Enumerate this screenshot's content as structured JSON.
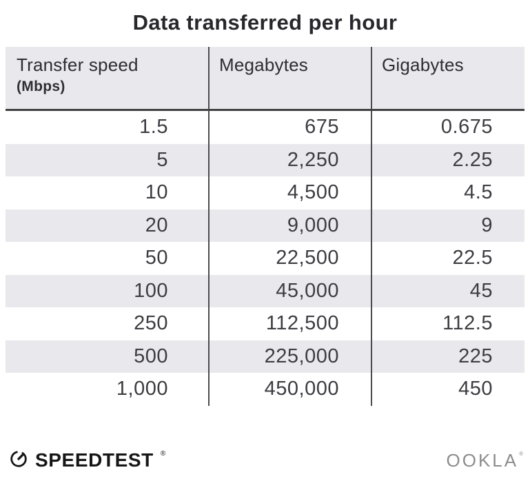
{
  "title": "Data transferred per hour",
  "table": {
    "columns": [
      {
        "label": "Transfer speed",
        "sublabel": "(Mbps)"
      },
      {
        "label": "Megabytes"
      },
      {
        "label": "Gigabytes"
      }
    ],
    "rows": [
      [
        "1.5",
        "675",
        "0.675"
      ],
      [
        "5",
        "2,250",
        "2.25"
      ],
      [
        "10",
        "4,500",
        "4.5"
      ],
      [
        "20",
        "9,000",
        "9"
      ],
      [
        "50",
        "22,500",
        "22.5"
      ],
      [
        "100",
        "45,000",
        "45"
      ],
      [
        "250",
        "112,500",
        "112.5"
      ],
      [
        "500",
        "225,000",
        "225"
      ],
      [
        "1,000",
        "450,000",
        "450"
      ]
    ]
  },
  "footer": {
    "speedtest_label": "SPEEDTEST",
    "speedtest_trademark": "®",
    "ookla_label": "OOKLA",
    "ookla_trademark": "®"
  },
  "colors": {
    "background": "#ffffff",
    "stripe": "#e9e9ed",
    "header_background": "#e9e9ed",
    "divider": "#4c4c4f",
    "header_underline": "#404043",
    "title_text": "#28282c",
    "number_text": "#3c3c41",
    "speedtest_black": "#161616",
    "ookla_gray": "#8c8c8c"
  },
  "chart_data": {
    "type": "table",
    "title": "Data transferred per hour",
    "columns": [
      "Transfer speed (Mbps)",
      "Megabytes",
      "Gigabytes"
    ],
    "rows": [
      [
        1.5,
        675,
        0.675
      ],
      [
        5,
        2250,
        2.25
      ],
      [
        10,
        4500,
        4.5
      ],
      [
        20,
        9000,
        9
      ],
      [
        50,
        22500,
        22.5
      ],
      [
        100,
        45000,
        45
      ],
      [
        250,
        112500,
        112.5
      ],
      [
        500,
        225000,
        225
      ],
      [
        1000,
        450000,
        450
      ]
    ]
  }
}
